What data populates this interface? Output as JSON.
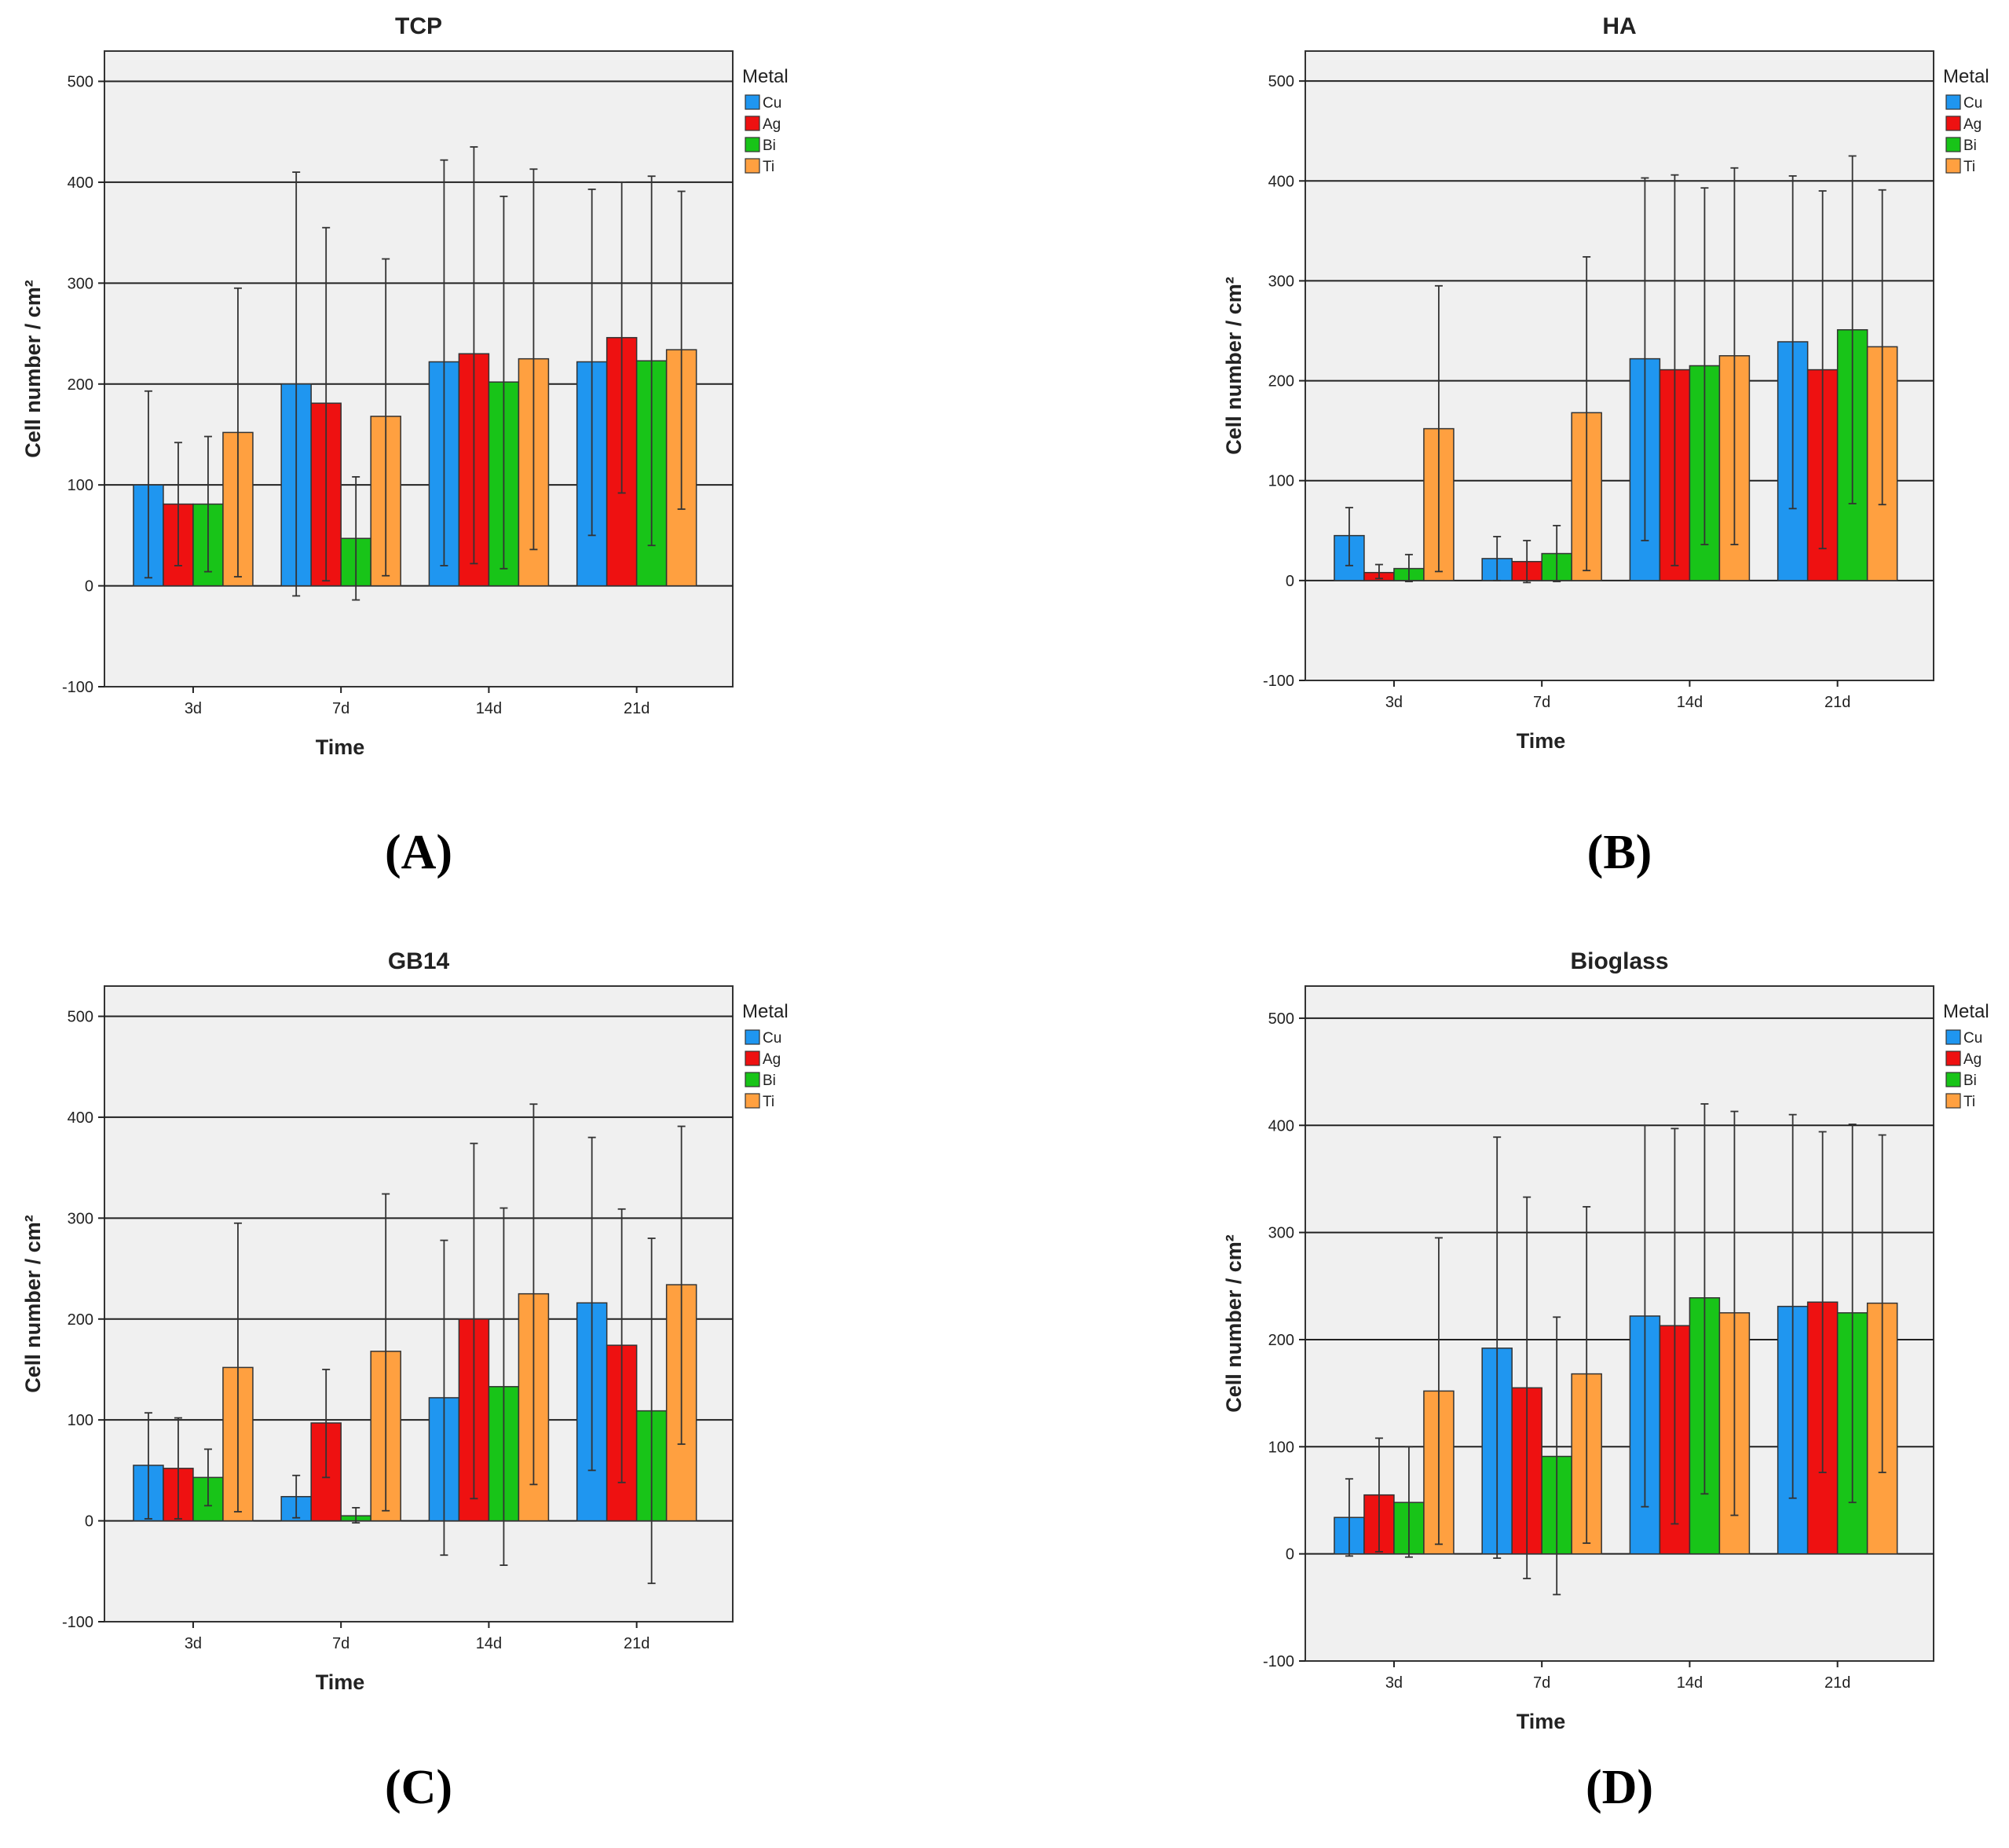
{
  "figure": {
    "legend_title": "Metal",
    "xlabel": "Time",
    "ylabel": "Cell number / cm²"
  },
  "colors": {
    "Cu": "#1f96f0",
    "Ag": "#ee1111",
    "Bi": "#18c418",
    "Ti": "#ffa040",
    "plot_bg": "#f0f0f0"
  },
  "chart_data": [
    {
      "type": "bar",
      "panel": "(A)",
      "title": "TCP",
      "xlabel": "Time",
      "ylabel": "Cell number / cm²",
      "ylim": [
        -100,
        530
      ],
      "yticks": [
        -100,
        0,
        100,
        200,
        300,
        400,
        500
      ],
      "categories": [
        "3d",
        "7d",
        "14d",
        "21d"
      ],
      "legend": "right",
      "series": [
        {
          "name": "Cu",
          "values": [
            100,
            200,
            222,
            222
          ],
          "err_low": [
            8,
            -10,
            20,
            50
          ],
          "err_high": [
            193,
            410,
            422,
            393
          ]
        },
        {
          "name": "Ag",
          "values": [
            81,
            181,
            230,
            246
          ],
          "err_low": [
            20,
            5,
            22,
            92
          ],
          "err_high": [
            142,
            355,
            435,
            400
          ]
        },
        {
          "name": "Bi",
          "values": [
            81,
            47,
            202,
            223
          ],
          "err_low": [
            14,
            -14,
            17,
            40
          ],
          "err_high": [
            148,
            108,
            386,
            406
          ]
        },
        {
          "name": "Ti",
          "values": [
            152,
            168,
            225,
            234
          ],
          "err_low": [
            9,
            10,
            36,
            76
          ],
          "err_high": [
            295,
            324,
            413,
            391
          ]
        }
      ]
    },
    {
      "type": "bar",
      "panel": "(B)",
      "title": "HA",
      "xlabel": "Time",
      "ylabel": "Cell number / cm²",
      "ylim": [
        -100,
        530
      ],
      "yticks": [
        -100,
        0,
        100,
        200,
        300,
        400,
        500
      ],
      "categories": [
        "3d",
        "7d",
        "14d",
        "21d"
      ],
      "legend": "right",
      "series": [
        {
          "name": "Cu",
          "values": [
            45,
            22,
            222,
            239
          ],
          "err_low": [
            15,
            0,
            40,
            72
          ],
          "err_high": [
            73,
            44,
            403,
            405
          ]
        },
        {
          "name": "Ag",
          "values": [
            8,
            19,
            211,
            211
          ],
          "err_low": [
            2,
            -2,
            15,
            32
          ],
          "err_high": [
            16,
            40,
            406,
            390
          ]
        },
        {
          "name": "Bi",
          "values": [
            12,
            27,
            215,
            251
          ],
          "err_low": [
            -1,
            -1,
            36,
            77
          ],
          "err_high": [
            26,
            55,
            393,
            425
          ]
        },
        {
          "name": "Ti",
          "values": [
            152,
            168,
            225,
            234
          ],
          "err_low": [
            9,
            10,
            36,
            76
          ],
          "err_high": [
            295,
            324,
            413,
            391
          ]
        }
      ]
    },
    {
      "type": "bar",
      "panel": "(C)",
      "title": "GB14",
      "xlabel": "Time",
      "ylabel": "Cell number / cm²",
      "ylim": [
        -100,
        530
      ],
      "yticks": [
        -100,
        0,
        100,
        200,
        300,
        400,
        500
      ],
      "categories": [
        "3d",
        "7d",
        "14d",
        "21d"
      ],
      "legend": "right",
      "series": [
        {
          "name": "Cu",
          "values": [
            55,
            24,
            122,
            216
          ],
          "err_low": [
            2,
            3,
            -34,
            50
          ],
          "err_high": [
            107,
            45,
            278,
            380
          ]
        },
        {
          "name": "Ag",
          "values": [
            52,
            97,
            200,
            174
          ],
          "err_low": [
            2,
            43,
            22,
            38
          ],
          "err_high": [
            102,
            150,
            374,
            309
          ]
        },
        {
          "name": "Bi",
          "values": [
            43,
            5,
            133,
            109
          ],
          "err_low": [
            15,
            -2,
            -44,
            -62
          ],
          "err_high": [
            71,
            13,
            310,
            280
          ]
        },
        {
          "name": "Ti",
          "values": [
            152,
            168,
            225,
            234
          ],
          "err_low": [
            9,
            10,
            36,
            76
          ],
          "err_high": [
            295,
            324,
            413,
            391
          ]
        }
      ]
    },
    {
      "type": "bar",
      "panel": "(D)",
      "title": "Bioglass",
      "xlabel": "Time",
      "ylabel": "Cell number / cm²",
      "ylim": [
        -100,
        530
      ],
      "yticks": [
        -100,
        0,
        100,
        200,
        300,
        400,
        500
      ],
      "categories": [
        "3d",
        "7d",
        "14d",
        "21d"
      ],
      "legend": "right",
      "series": [
        {
          "name": "Cu",
          "values": [
            34,
            192,
            222,
            231
          ],
          "err_low": [
            -2,
            -4,
            44,
            52
          ],
          "err_high": [
            70,
            389,
            400,
            410
          ]
        },
        {
          "name": "Ag",
          "values": [
            55,
            155,
            213,
            235
          ],
          "err_low": [
            2,
            -23,
            28,
            76
          ],
          "err_high": [
            108,
            333,
            397,
            394
          ]
        },
        {
          "name": "Bi",
          "values": [
            48,
            91,
            239,
            225
          ],
          "err_low": [
            -3,
            -38,
            56,
            48
          ],
          "err_high": [
            100,
            221,
            420,
            401
          ]
        },
        {
          "name": "Ti",
          "values": [
            152,
            168,
            225,
            234
          ],
          "err_low": [
            9,
            10,
            36,
            76
          ],
          "err_high": [
            295,
            324,
            413,
            391
          ]
        }
      ]
    }
  ]
}
